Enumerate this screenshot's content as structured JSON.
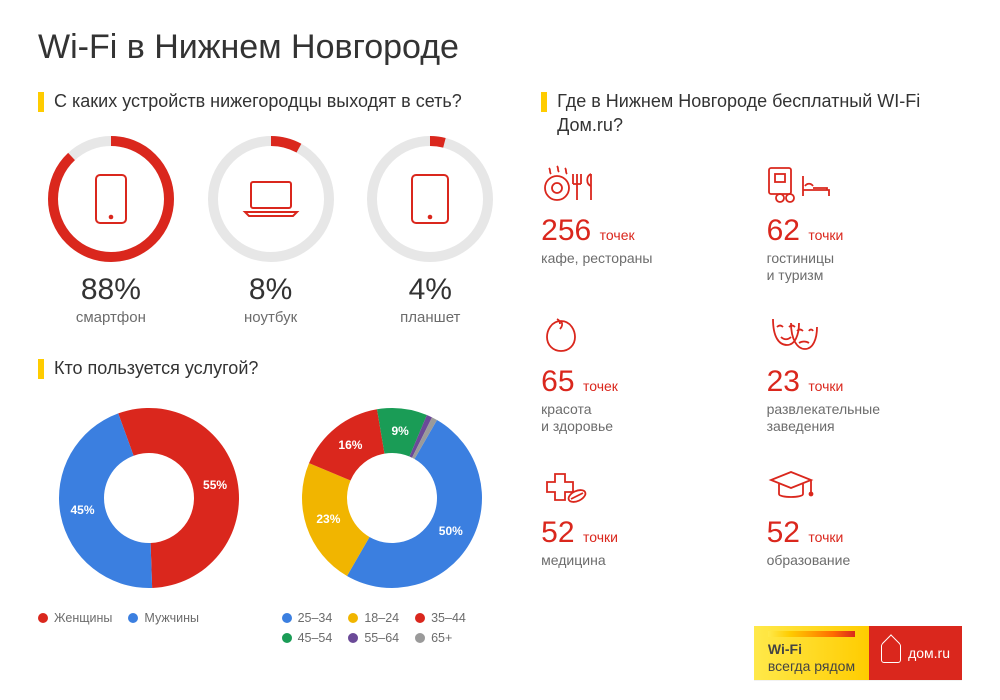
{
  "title": "Wi-Fi в Нижнем Новгороде",
  "colors": {
    "accent_yellow": "#ffcc00",
    "red": "#da271d",
    "blue": "#3b7fe0",
    "yellow": "#f1b500",
    "green": "#1a9c56",
    "purple": "#6b4a98",
    "grey": "#9a9a9a",
    "ring_track": "#e7e7e7",
    "text_grey": "#6c6c6c"
  },
  "devices_section": {
    "heading": "С каких устройств нижегородцы выходят в сеть?",
    "ring": {
      "outer_radius": 58,
      "stroke_width": 10,
      "icon_stroke": "#da271d"
    },
    "items": [
      {
        "key": "smartphone",
        "pct": 88,
        "pct_text": "88%",
        "label": "смартфон",
        "ring_color": "#da271d"
      },
      {
        "key": "laptop",
        "pct": 8,
        "pct_text": "8%",
        "label": "ноутбук",
        "ring_color": "#da271d"
      },
      {
        "key": "tablet",
        "pct": 4,
        "pct_text": "4%",
        "label": "планшет",
        "ring_color": "#da271d"
      }
    ]
  },
  "users_section": {
    "heading": "Кто пользуется услугой?",
    "donut": {
      "outer_radius": 90,
      "inner_radius": 45
    },
    "gender": {
      "slices": [
        {
          "label": "Женщины",
          "value": 55,
          "value_text": "55%",
          "color": "#da271d"
        },
        {
          "label": "Мужчины",
          "value": 45,
          "value_text": "45%",
          "color": "#3b7fe0"
        }
      ],
      "start_angle": -110
    },
    "age": {
      "slices": [
        {
          "label": "25–34",
          "value": 50,
          "value_text": "50%",
          "color": "#3b7fe0"
        },
        {
          "label": "18–24",
          "value": 23,
          "value_text": "23%",
          "color": "#f1b500"
        },
        {
          "label": "35–44",
          "value": 16,
          "value_text": "16%",
          "color": "#da271d"
        },
        {
          "label": "45–54",
          "value": 9,
          "value_text": "9%",
          "color": "#1a9c56"
        },
        {
          "label": "55–64",
          "value": 1,
          "value_text": "",
          "color": "#6b4a98"
        },
        {
          "label": "65+",
          "value": 1,
          "value_text": "",
          "color": "#9a9a9a"
        }
      ],
      "start_angle": -60,
      "legend_columns": 3
    }
  },
  "hotspots_section": {
    "heading": "Где в Нижнем Новгороде бесплатный WI-Fi Дом.ru?",
    "count_color": "#da271d",
    "icon_stroke": "#da271d",
    "items": [
      {
        "key": "cafe",
        "count": 256,
        "unit": "точек",
        "label": "кафе, рестораны"
      },
      {
        "key": "hotel",
        "count": 62,
        "unit": "точки",
        "label": "гостиницы\nи туризм"
      },
      {
        "key": "beauty",
        "count": 65,
        "unit": "точек",
        "label": "красота\nи здоровье"
      },
      {
        "key": "entertain",
        "count": 23,
        "unit": "точки",
        "label": "развлекательные\nзаведения"
      },
      {
        "key": "medicine",
        "count": 52,
        "unit": "точки",
        "label": "медицина"
      },
      {
        "key": "education",
        "count": 52,
        "unit": "точки",
        "label": "образование"
      }
    ]
  },
  "footer": {
    "wifi_line1": "Wi-Fi",
    "wifi_line2": "всегда рядом",
    "brand": "дом.ru",
    "gradient_colors": [
      "#ffe94a",
      "#ffcc00",
      "#ff9f00",
      "#ff6a00",
      "#da271d"
    ]
  }
}
